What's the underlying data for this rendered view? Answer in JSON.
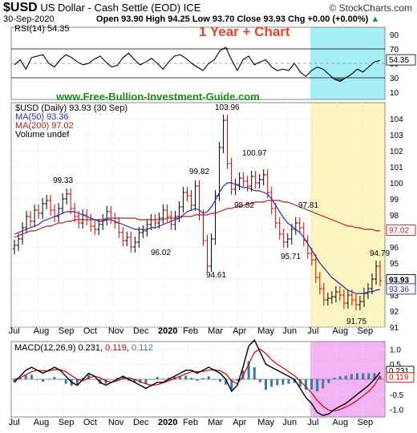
{
  "header": {
    "symbol": "$USD",
    "description": "US Dollar - Cash Settle (EOD)",
    "exchange": "ICE",
    "date": "30-Sep-2020",
    "quote": "Open 93.90  High 94.25  Low 93.70  Close 93.93  Chg +0.00 (+0.00%)",
    "quote_up_glyph": "▲",
    "source": "© StockCharts.com"
  },
  "overlay": {
    "title": "1 Year + Chart",
    "website": "www.Free-Bullion-Investment-Guide.com",
    "title_color": "#e8422a",
    "website_color": "#1e8b1e"
  },
  "colors": {
    "rsi_highlight": "#a8f0f8",
    "price_highlight": "#fbf5c0",
    "macd_highlight": "#f3b2f3",
    "ma50": "#2b2ba8",
    "ma200": "#b02020",
    "up_bar": "#000000",
    "down_bar": "#cc0000",
    "macd_line": "#000000",
    "signal_line": "#cc0000",
    "histogram": "#3a7aa8",
    "rsi_line": "#000000",
    "rsi_fill": "#5a6a6a"
  },
  "chart_data": [
    {
      "type": "line",
      "panel": "rsi",
      "legend": "RSI(14) 54.35",
      "ylim": [
        0,
        100
      ],
      "y_ticks": [
        "90",
        "70",
        "50",
        "30",
        "10"
      ],
      "reference_lines": [
        70,
        30
      ],
      "last_value": "54.35",
      "months": [
        "Jul",
        "Aug",
        "Sep",
        "Oct",
        "Nov",
        "Dec",
        "2020",
        "Feb",
        "Mar",
        "Apr",
        "May",
        "Jun",
        "Jul",
        "Aug",
        "Sep"
      ],
      "values": [
        48,
        55,
        42,
        58,
        60,
        62,
        50,
        45,
        55,
        62,
        58,
        52,
        48,
        50,
        56,
        60,
        52,
        45,
        47,
        58,
        64,
        55,
        48,
        52,
        57,
        50,
        42,
        52,
        60,
        62,
        57,
        50,
        45,
        40,
        50,
        55,
        68,
        72,
        55,
        40,
        55,
        60,
        48,
        52,
        55,
        45,
        40,
        42,
        40,
        50,
        38,
        32,
        40,
        45,
        42,
        35,
        28,
        25,
        30,
        35,
        42,
        38,
        45,
        52,
        54
      ]
    },
    {
      "type": "candlestick",
      "panel": "price",
      "legend": [
        "$USD (Daily) 93.93 (30 Sep)",
        "MA(50) 93.36",
        "MA(200) 97.02",
        "Volume undef"
      ],
      "ylim": [
        91,
        105
      ],
      "y_ticks": [
        "104",
        "103",
        "102",
        "101",
        "100",
        "99",
        "98",
        "97",
        "96",
        "95",
        "94",
        "93",
        "92",
        "91"
      ],
      "x_ticks": [
        "Jul",
        "Aug",
        "Sep",
        "Oct",
        "Nov",
        "Dec",
        "2020",
        "Feb",
        "Mar",
        "Apr",
        "May",
        "Jun",
        "Jul",
        "Aug",
        "Sep"
      ],
      "close": [
        96.1,
        96.5,
        97.2,
        97.9,
        97.6,
        98.3,
        98.1,
        98.7,
        98.9,
        98.3,
        97.9,
        98.4,
        99.0,
        99.3,
        98.4,
        97.9,
        97.5,
        98.0,
        97.7,
        97.3,
        97.1,
        97.4,
        97.7,
        98.2,
        97.8,
        97.5,
        96.9,
        96.4,
        96.6,
        96.0,
        96.3,
        96.9,
        97.0,
        97.4,
        97.7,
        97.5,
        97.8,
        98.3,
        97.9,
        97.4,
        97.9,
        98.5,
        99.4,
        99.2,
        98.6,
        99.8,
        98.0,
        96.4,
        94.8,
        96.5,
        99.2,
        102.2,
        103.9,
        101.2,
        99.6,
        99.9,
        100.3,
        100.1,
        99.8,
        100.4,
        100.0,
        100.2,
        100.5,
        99.4,
        98.4,
        97.5,
        96.8,
        96.3,
        96.5,
        97.1,
        97.5,
        97.2,
        96.4,
        95.6,
        95.2,
        94.1,
        93.4,
        92.7,
        92.8,
        92.9,
        93.2,
        93.0,
        92.5,
        93.0,
        92.7,
        92.4,
        92.6,
        93.1,
        93.4,
        94.0,
        94.8,
        93.9
      ],
      "ma50": [
        96.8,
        96.9,
        97.0,
        97.1,
        97.2,
        97.3,
        97.4,
        97.6,
        97.7,
        97.8,
        97.9,
        98.0,
        98.1,
        98.2,
        98.2,
        98.2,
        98.1,
        98.0,
        97.9,
        97.8,
        97.7,
        97.6,
        97.6,
        97.7,
        97.7,
        97.6,
        97.5,
        97.4,
        97.3,
        97.2,
        97.1,
        97.1,
        97.1,
        97.1,
        97.2,
        97.2,
        97.3,
        97.4,
        97.5,
        97.6,
        97.7,
        97.8,
        98.0,
        98.2,
        98.3,
        98.4,
        98.3,
        98.1,
        98.2,
        98.5,
        98.9,
        99.4,
        99.8,
        100.0,
        100.0,
        99.9,
        99.8,
        99.7,
        99.7,
        99.6,
        99.5,
        99.5,
        99.4,
        99.3,
        99.0,
        98.6,
        98.2,
        97.8,
        97.5,
        97.3,
        97.1,
        96.9,
        96.6,
        96.2,
        95.8,
        95.4,
        95.0,
        94.7,
        94.4,
        94.1,
        93.9,
        93.7,
        93.5,
        93.3,
        93.2,
        93.1,
        93.1,
        93.1,
        93.2,
        93.2,
        93.3,
        93.36
      ],
      "ma200": [
        96.6,
        96.7,
        96.8,
        96.9,
        97.0,
        97.0,
        97.1,
        97.2,
        97.3,
        97.3,
        97.4,
        97.5,
        97.5,
        97.6,
        97.6,
        97.7,
        97.7,
        97.7,
        97.7,
        97.7,
        97.7,
        97.7,
        97.7,
        97.8,
        97.8,
        97.8,
        97.8,
        97.8,
        97.8,
        97.8,
        97.8,
        97.7,
        97.7,
        97.7,
        97.7,
        97.7,
        97.7,
        97.7,
        97.8,
        97.8,
        97.8,
        97.8,
        97.9,
        97.9,
        97.9,
        98.0,
        98.0,
        98.0,
        98.0,
        98.1,
        98.1,
        98.2,
        98.3,
        98.4,
        98.4,
        98.5,
        98.5,
        98.6,
        98.7,
        98.7,
        98.8,
        98.8,
        98.8,
        98.9,
        98.9,
        98.9,
        98.9,
        98.8,
        98.8,
        98.7,
        98.6,
        98.5,
        98.4,
        98.3,
        98.2,
        98.1,
        98.0,
        97.9,
        97.8,
        97.7,
        97.6,
        97.5,
        97.4,
        97.3,
        97.3,
        97.2,
        97.2,
        97.1,
        97.1,
        97.1,
        97.0,
        97.02
      ],
      "annotations": [
        "99.33",
        "103.96",
        "99.82",
        "100.97",
        "98.82",
        "97.81",
        "96.02",
        "95.71",
        "94.61",
        "94.79",
        "91.75"
      ],
      "last_close": "93.93",
      "last_ma50": "93.36",
      "last_ma200": "97.02"
    },
    {
      "type": "line",
      "panel": "macd",
      "legend_prefix": "MACD(12,26,9)",
      "legend_values": [
        "0.231",
        "0.119",
        "0.112"
      ],
      "ylim": [
        -1.25,
        1.25
      ],
      "y_ticks": [
        "1.0",
        "0.5",
        "0.0",
        "-0.5",
        "-1.0"
      ],
      "x_ticks": [
        "Jul",
        "Aug",
        "Sep",
        "Oct",
        "Nov",
        "Dec",
        "2020",
        "Feb",
        "Mar",
        "Apr",
        "May",
        "Jun",
        "Jul",
        "Aug",
        "Sep"
      ],
      "macd": [
        -0.1,
        0.1,
        0.3,
        0.4,
        0.3,
        0.2,
        0.3,
        0.4,
        0.3,
        0.1,
        -0.1,
        -0.2,
        0.0,
        0.2,
        0.1,
        -0.1,
        -0.2,
        -0.1,
        0.0,
        0.1,
        0.0,
        -0.1,
        -0.2,
        -0.3,
        -0.2,
        -0.1,
        -0.1,
        0.0,
        0.1,
        0.2,
        0.3,
        0.3,
        0.2,
        0.3,
        0.4,
        0.3,
        0.2,
        0.0,
        -0.4,
        -0.2,
        0.4,
        1.1,
        1.3,
        0.9,
        0.5,
        0.4,
        0.3,
        0.2,
        0.1,
        0.0,
        -0.3,
        -0.6,
        -0.8,
        -1.1,
        -1.2,
        -1.15,
        -1.0,
        -0.9,
        -0.8,
        -0.65,
        -0.5,
        -0.35,
        -0.2,
        0.0,
        0.231
      ],
      "signal": [
        0.0,
        0.05,
        0.15,
        0.25,
        0.3,
        0.28,
        0.28,
        0.32,
        0.32,
        0.25,
        0.12,
        0.0,
        -0.05,
        0.05,
        0.1,
        0.05,
        -0.05,
        -0.1,
        -0.05,
        0.02,
        0.05,
        0.0,
        -0.08,
        -0.15,
        -0.2,
        -0.18,
        -0.12,
        -0.05,
        0.02,
        0.1,
        0.18,
        0.25,
        0.25,
        0.26,
        0.3,
        0.32,
        0.28,
        0.18,
        -0.05,
        -0.15,
        0.1,
        0.5,
        0.9,
        1.0,
        0.85,
        0.65,
        0.5,
        0.38,
        0.25,
        0.12,
        -0.05,
        -0.25,
        -0.45,
        -0.7,
        -0.9,
        -1.02,
        -1.05,
        -1.0,
        -0.92,
        -0.82,
        -0.7,
        -0.55,
        -0.4,
        -0.2,
        0.119
      ],
      "last_values": [
        "0.231",
        "0.119"
      ]
    }
  ]
}
